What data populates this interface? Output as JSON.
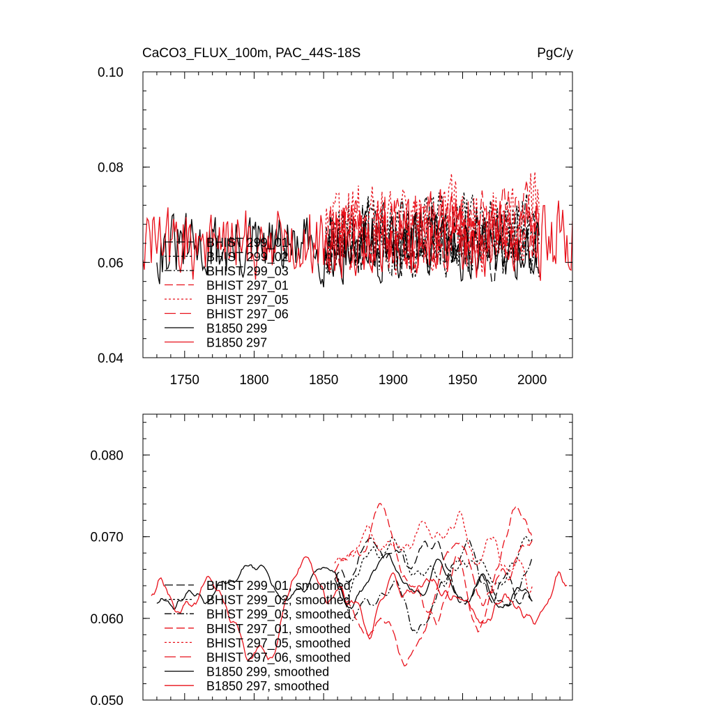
{
  "chart_data": [
    {
      "type": "line",
      "title": "CaCO3_FLUX_100m, PAC_44S-18S",
      "units": "PgC/y",
      "xlim": [
        1720,
        2029
      ],
      "ylim": [
        0.04,
        0.1
      ],
      "xticks": [
        1750,
        1800,
        1850,
        1900,
        1950,
        2000
      ],
      "yticks": [
        0.04,
        0.06,
        0.08,
        0.1
      ],
      "ytick_labels": [
        "0.04",
        "0.06",
        "0.08",
        "0.10"
      ],
      "legend_position": "lower-left",
      "series": [
        {
          "name": "BHIST 299_01",
          "color": "#000000",
          "dash": "long",
          "x_start": 1850,
          "x_end": 2005,
          "base": 0.065,
          "amp": 0.0085,
          "trend": 0.0,
          "seed": 11
        },
        {
          "name": "BHIST 299_02",
          "color": "#000000",
          "dash": "short",
          "x_start": 1850,
          "x_end": 2005,
          "base": 0.066,
          "amp": 0.009,
          "trend": 0.0,
          "seed": 12
        },
        {
          "name": "BHIST 299_03",
          "color": "#000000",
          "dash": "dashdot",
          "x_start": 1850,
          "x_end": 2005,
          "base": 0.065,
          "amp": 0.0085,
          "trend": 0.0,
          "seed": 13
        },
        {
          "name": "BHIST 297_01",
          "color": "#e8101a",
          "dash": "long",
          "x_start": 1850,
          "x_end": 2005,
          "base": 0.066,
          "amp": 0.009,
          "trend": 0.002,
          "seed": 21
        },
        {
          "name": "BHIST 297_05",
          "color": "#e8101a",
          "dash": "short",
          "x_start": 1850,
          "x_end": 2005,
          "base": 0.067,
          "amp": 0.01,
          "trend": 0.002,
          "seed": 22
        },
        {
          "name": "BHIST 297_06",
          "color": "#e8101a",
          "dash": "dashlong",
          "x_start": 1850,
          "x_end": 2005,
          "base": 0.066,
          "amp": 0.009,
          "trend": 0.002,
          "seed": 23
        },
        {
          "name": "B1850 299",
          "color": "#000000",
          "dash": "solid",
          "x_start": 1730,
          "x_end": 2005,
          "base": 0.063,
          "amp": 0.0075,
          "trend": 0.0,
          "seed": 31
        },
        {
          "name": "B1850 297",
          "color": "#e8101a",
          "dash": "solid",
          "x_start": 1720,
          "x_end": 2029,
          "base": 0.064,
          "amp": 0.0085,
          "trend": 0.001,
          "seed": 32
        }
      ]
    },
    {
      "type": "line",
      "xlim": [
        1720,
        2029
      ],
      "ylim": [
        0.05,
        0.085
      ],
      "xticks": [
        1750,
        1800,
        1850,
        1900,
        1950,
        2000
      ],
      "yticks": [
        0.05,
        0.06,
        0.07,
        0.08
      ],
      "ytick_labels": [
        "0.050",
        "0.060",
        "0.070",
        "0.080"
      ],
      "legend_position": "lower-left",
      "series": [
        {
          "name": "BHIST 299_01, smoothed",
          "color": "#000000",
          "dash": "long",
          "x_start": 1858,
          "x_end": 2000,
          "base": 0.065,
          "amp": 0.0045,
          "trend": 0.0,
          "seed": 41
        },
        {
          "name": "BHIST 299_02, smoothed",
          "color": "#000000",
          "dash": "short",
          "x_start": 1858,
          "x_end": 2000,
          "base": 0.066,
          "amp": 0.0045,
          "trend": 0.0,
          "seed": 42
        },
        {
          "name": "BHIST 299_03, smoothed",
          "color": "#000000",
          "dash": "dashdot",
          "x_start": 1858,
          "x_end": 2000,
          "base": 0.065,
          "amp": 0.0045,
          "trend": 0.0,
          "seed": 43
        },
        {
          "name": "BHIST 297_01, smoothed",
          "color": "#e8101a",
          "dash": "long",
          "x_start": 1858,
          "x_end": 2000,
          "base": 0.066,
          "amp": 0.0055,
          "trend": 0.002,
          "seed": 51
        },
        {
          "name": "BHIST 297_05, smoothed",
          "color": "#e8101a",
          "dash": "short",
          "x_start": 1858,
          "x_end": 2000,
          "base": 0.067,
          "amp": 0.006,
          "trend": 0.003,
          "seed": 52
        },
        {
          "name": "BHIST 297_06, smoothed",
          "color": "#e8101a",
          "dash": "dashlong",
          "x_start": 1858,
          "x_end": 2000,
          "base": 0.066,
          "amp": 0.0055,
          "trend": 0.002,
          "seed": 53
        },
        {
          "name": "B1850 299, smoothed",
          "color": "#000000",
          "dash": "solid",
          "x_start": 1730,
          "x_end": 2000,
          "base": 0.062,
          "amp": 0.004,
          "trend": 0.0,
          "seed": 61
        },
        {
          "name": "B1850 297, smoothed",
          "color": "#e8101a",
          "dash": "solid",
          "x_start": 1726,
          "x_end": 2025,
          "base": 0.063,
          "amp": 0.0055,
          "trend": 0.001,
          "seed": 62
        }
      ]
    }
  ]
}
